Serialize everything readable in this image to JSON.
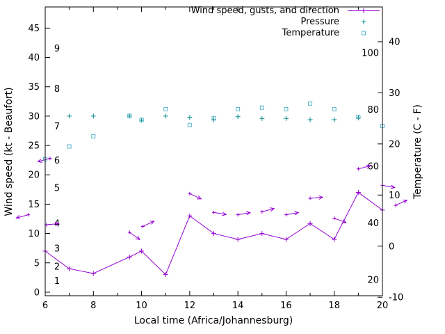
{
  "chart_data": {
    "type": "line",
    "xlabel": "Local time (Africa/Johannesburg)",
    "ylabel": "Wind speed (kt - Beaufort)",
    "y2label": "Temperature (C - F)",
    "xlim": [
      6,
      20
    ],
    "x_ticks": [
      6,
      8,
      10,
      12,
      14,
      16,
      18,
      20
    ],
    "x_minor_ticks": [
      7,
      9,
      11,
      13,
      15,
      17,
      19
    ],
    "y1lim": [
      -0.6,
      48.6
    ],
    "y1_ticks": [
      0,
      5,
      10,
      15,
      20,
      25,
      30,
      35,
      40,
      45
    ],
    "beaufort_labels": [
      {
        "label": "1",
        "kt": 1.9
      },
      {
        "label": "2",
        "kt": 4.3
      },
      {
        "label": "3",
        "kt": 7.4
      },
      {
        "label": "4",
        "kt": 11.7
      },
      {
        "label": "5",
        "kt": 17.7
      },
      {
        "label": "6",
        "kt": 22.4
      },
      {
        "label": "7",
        "kt": 28.2
      },
      {
        "label": "8",
        "kt": 34.6
      },
      {
        "label": "9",
        "kt": 41.5
      }
    ],
    "y2lim": [
      -9.7,
      46.8
    ],
    "y2_ticks": [
      -10,
      0,
      10,
      20,
      30,
      40
    ],
    "fahrenheit_labels": [
      {
        "label": "20",
        "f": 20
      },
      {
        "label": "40",
        "f": 40
      },
      {
        "label": "60",
        "f": 60
      },
      {
        "label": "80",
        "f": 80
      },
      {
        "label": "100",
        "f": 100
      }
    ],
    "legend": [
      {
        "label": "Wind speed, gusts, and direction",
        "series": "wind_speed"
      },
      {
        "label": "Pressure",
        "series": "pressure"
      },
      {
        "label": "Temperature",
        "series": "temperature"
      }
    ],
    "colors": {
      "wind": "#9400D3",
      "pressure": "#008B8B",
      "temperature": "#56B4C8",
      "axis": "#000000"
    },
    "series": [
      {
        "name": "wind_speed",
        "axis": "y1",
        "style": "linespoints",
        "x": [
          6,
          7,
          8,
          9.5,
          10,
          11,
          12,
          13,
          14,
          15,
          16,
          17,
          18,
          19,
          20
        ],
        "values": [
          7,
          4,
          3.2,
          6,
          7,
          3,
          13,
          10,
          9,
          10,
          9,
          11.7,
          9,
          17,
          14
        ]
      },
      {
        "name": "wind_gusts_direction",
        "axis": "y1",
        "style": "vectors",
        "points": [
          {
            "x": 5.3,
            "kt": 13.2,
            "dir": 195
          },
          {
            "x": 6.2,
            "kt": 22.8,
            "dir": 195
          },
          {
            "x": 6.05,
            "kt": 11.5,
            "dir": 5
          },
          {
            "x": 9.5,
            "kt": 10.2,
            "dir": -35
          },
          {
            "x": 10.05,
            "kt": 11.2,
            "dir": 25
          },
          {
            "x": 12,
            "kt": 16.8,
            "dir": -25
          },
          {
            "x": 13,
            "kt": 13.6,
            "dir": -10
          },
          {
            "x": 14,
            "kt": 13.2,
            "dir": 10
          },
          {
            "x": 15,
            "kt": 13.7,
            "dir": 15
          },
          {
            "x": 16,
            "kt": 13.2,
            "dir": 10
          },
          {
            "x": 17,
            "kt": 16,
            "dir": 5
          },
          {
            "x": 18,
            "kt": 12.6,
            "dir": -20
          },
          {
            "x": 19,
            "kt": 21,
            "dir": 15
          },
          {
            "x": 20,
            "kt": 18.2,
            "dir": -10
          },
          {
            "x": 20.55,
            "kt": 14.8,
            "dir": 25
          }
        ]
      },
      {
        "name": "pressure",
        "axis": "y1",
        "style": "points",
        "x": [
          7,
          8,
          9.5,
          10,
          11,
          12,
          13,
          14,
          15,
          16,
          17,
          18,
          19
        ],
        "values": [
          30,
          30,
          30,
          29.3,
          30,
          29.8,
          29.4,
          29.9,
          29.6,
          29.6,
          29.4,
          29.4,
          29.7
        ]
      },
      {
        "name": "temperature",
        "axis": "y2",
        "style": "squares",
        "x": [
          6,
          7,
          8,
          9.5,
          10,
          11,
          12,
          13,
          14,
          15,
          16,
          17,
          18,
          19,
          20
        ],
        "values": [
          17,
          19.5,
          21.5,
          25.5,
          24.7,
          26.8,
          23.7,
          25,
          26.8,
          27.1,
          26.8,
          27.9,
          26.8,
          25.3,
          23.5
        ]
      }
    ]
  }
}
